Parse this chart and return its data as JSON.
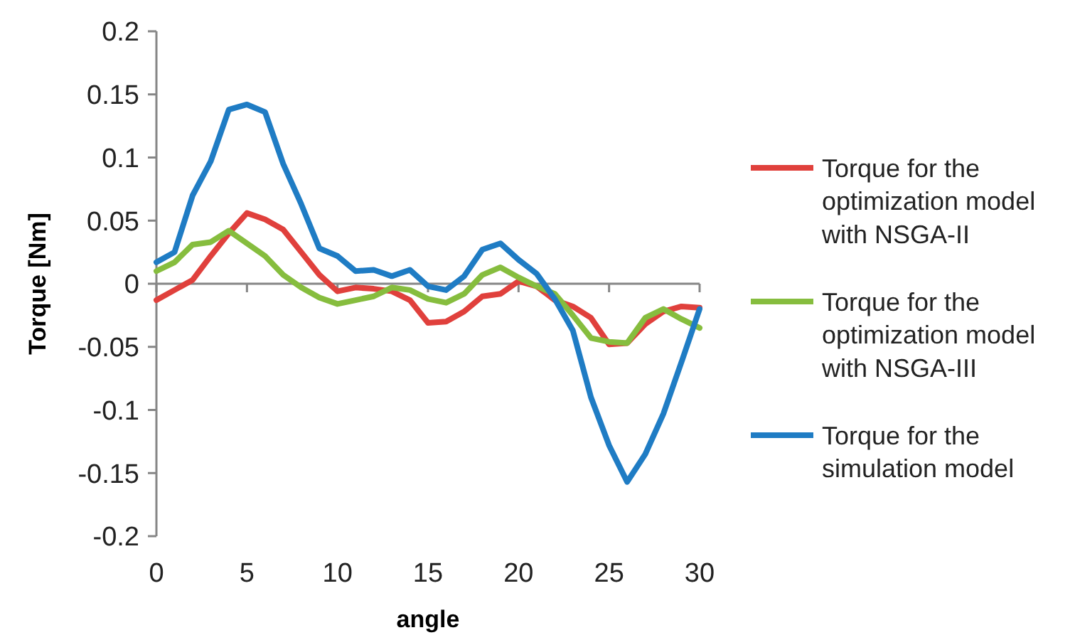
{
  "chart_data": {
    "type": "line",
    "xlabel": "angle",
    "ylabel": "Torque [Nm]",
    "x": [
      0,
      1,
      2,
      3,
      4,
      5,
      6,
      7,
      8,
      9,
      10,
      11,
      12,
      13,
      14,
      15,
      16,
      17,
      18,
      19,
      20,
      21,
      22,
      23,
      24,
      25,
      26,
      27,
      28,
      29,
      30
    ],
    "xlim": [
      0,
      30
    ],
    "xticks": [
      0,
      5,
      10,
      15,
      20,
      25,
      30
    ],
    "ylim": [
      -0.2,
      0.2
    ],
    "yticks": [
      -0.2,
      -0.15,
      -0.1,
      -0.05,
      0,
      0.05,
      0.1,
      0.15,
      0.2
    ],
    "legend": "right",
    "marker": "none",
    "line_style": "solid",
    "series": [
      {
        "name": "Torque for the optimization model with NSGA-II",
        "color": "#e0403c",
        "values": [
          -0.013,
          -0.005,
          0.003,
          0.022,
          0.04,
          0.056,
          0.051,
          0.043,
          0.025,
          0.007,
          -0.006,
          -0.003,
          -0.004,
          -0.006,
          -0.013,
          -0.031,
          -0.03,
          -0.022,
          -0.01,
          -0.008,
          0.002,
          -0.002,
          -0.013,
          -0.018,
          -0.027,
          -0.048,
          -0.047,
          -0.032,
          -0.022,
          -0.018,
          -0.019
        ]
      },
      {
        "name": "Torque for the optimization model with NSGA-III",
        "color": "#86bd3e",
        "values": [
          0.01,
          0.017,
          0.031,
          0.033,
          0.042,
          0.032,
          0.022,
          0.007,
          -0.003,
          -0.011,
          -0.016,
          -0.013,
          -0.01,
          -0.003,
          -0.005,
          -0.012,
          -0.015,
          -0.008,
          0.007,
          0.013,
          0.005,
          -0.002,
          -0.008,
          -0.025,
          -0.043,
          -0.046,
          -0.047,
          -0.027,
          -0.02,
          -0.028,
          -0.035
        ]
      },
      {
        "name": "Torque for the simulation model",
        "color": "#1f7cc4",
        "values": [
          0.017,
          0.025,
          0.07,
          0.097,
          0.138,
          0.142,
          0.136,
          0.095,
          0.063,
          0.028,
          0.022,
          0.01,
          0.011,
          0.006,
          0.011,
          -0.002,
          -0.005,
          0.006,
          0.027,
          0.032,
          0.019,
          0.008,
          -0.012,
          -0.037,
          -0.09,
          -0.128,
          -0.157,
          -0.135,
          -0.103,
          -0.062,
          -0.02
        ]
      }
    ]
  }
}
